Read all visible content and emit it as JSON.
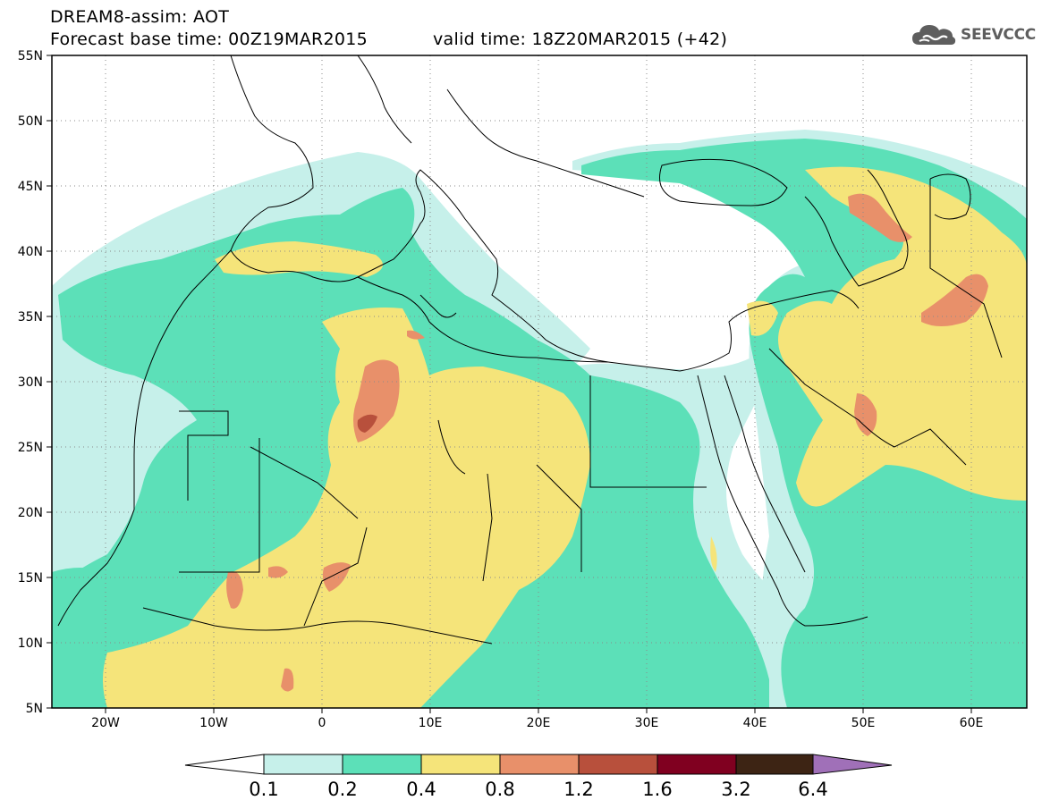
{
  "header": {
    "title": "DREAM8-assim: AOT",
    "base_time": "Forecast base time: 00Z19MAR2015",
    "valid_time": "valid time: 18Z20MAR2015 (+42)"
  },
  "logo": {
    "text": "SEEVCCC",
    "icon": "cloud-icon"
  },
  "map": {
    "lon_range": [
      -25,
      65
    ],
    "lat_range": [
      5,
      55
    ],
    "lat_labels": [
      "5N",
      "10N",
      "15N",
      "20N",
      "25N",
      "30N",
      "35N",
      "40N",
      "45N",
      "50N",
      "55N"
    ],
    "lon_labels": [
      "20W",
      "10W",
      "0",
      "10E",
      "20E",
      "30E",
      "40E",
      "50E",
      "60E"
    ],
    "grid": "dotted",
    "frame_color": "#000000"
  },
  "legend": {
    "levels": [
      "0.1",
      "0.2",
      "0.4",
      "0.8",
      "1.2",
      "1.6",
      "3.2",
      "6.4"
    ],
    "colors": [
      "#ffffff",
      "#c6f0ea",
      "#5ce0b8",
      "#f5e47a",
      "#e8906a",
      "#b8503c",
      "#800020",
      "#3d2414",
      "#a070b8"
    ]
  }
}
